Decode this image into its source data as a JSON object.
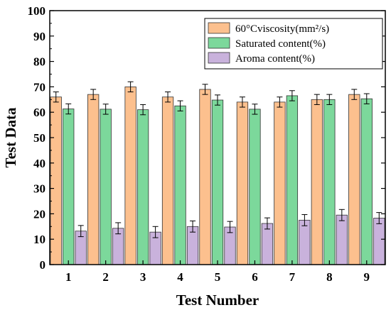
{
  "chart_data": {
    "type": "bar",
    "xlabel": "Test Number",
    "ylabel": "Test Data",
    "ylim": [
      0,
      100
    ],
    "yticks": [
      0,
      10,
      20,
      30,
      40,
      50,
      60,
      70,
      80,
      90,
      100
    ],
    "categories": [
      "1",
      "2",
      "3",
      "4",
      "5",
      "6",
      "7",
      "8",
      "9"
    ],
    "legend_position": "top-right",
    "series": [
      {
        "name": "60°Cviscosity(mm²/s)",
        "color": "#fcc08e",
        "values": [
          66,
          67,
          70,
          66,
          69,
          64,
          64,
          65,
          67
        ],
        "errors": [
          2,
          2,
          2,
          2,
          2,
          2,
          2,
          2,
          2
        ]
      },
      {
        "name": "Saturated content(%)",
        "color": "#7cd89b",
        "values": [
          61.3,
          61.2,
          61,
          62.5,
          64.8,
          61.2,
          66.5,
          65,
          65.3
        ],
        "errors": [
          2,
          2,
          2,
          2,
          2,
          2,
          2,
          2,
          2
        ]
      },
      {
        "name": "Aroma content(%)",
        "color": "#c9b2dc",
        "values": [
          13.2,
          14.3,
          12.8,
          15,
          14.8,
          16.2,
          17.5,
          19.5,
          18.3
        ],
        "errors": [
          2.2,
          2.2,
          2.2,
          2.2,
          2.2,
          2.2,
          2.2,
          2.2,
          2.2
        ]
      }
    ]
  }
}
